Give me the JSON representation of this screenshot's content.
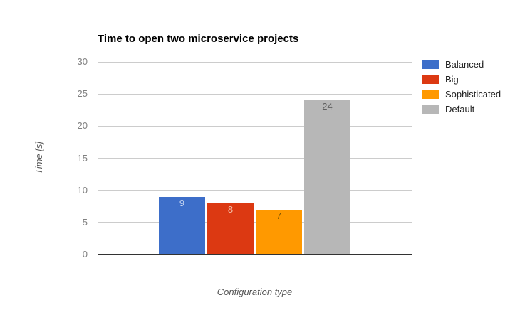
{
  "chart_data": {
    "type": "bar",
    "title": "Time to open two microservice projects",
    "xlabel": "Configuration type",
    "ylabel": "Time [s]",
    "ylim": [
      0,
      30
    ],
    "yticks": [
      0,
      5,
      10,
      15,
      20,
      25,
      30
    ],
    "grid": true,
    "legend_position": "right",
    "categories": [
      "Balanced",
      "Big",
      "Sophisticated",
      "Default"
    ],
    "values": [
      9,
      8,
      7,
      24
    ],
    "bar_colors": [
      "#3d6ec9",
      "#dc3912",
      "#ff9900",
      "#b7b7b7"
    ],
    "value_label_colors": [
      "#c9d8f2",
      "#f2c2ac",
      "#6b4a00",
      "#5f5f5f"
    ],
    "value_labels": [
      "9",
      "8",
      "7",
      "24"
    ],
    "colors": {
      "gridline": "#cccccc",
      "baseline": "#333333",
      "tick_text": "#808080",
      "axis_title_text": "#555555",
      "legend_text": "#222222",
      "title_text": "#000000",
      "background": "#ffffff"
    }
  }
}
